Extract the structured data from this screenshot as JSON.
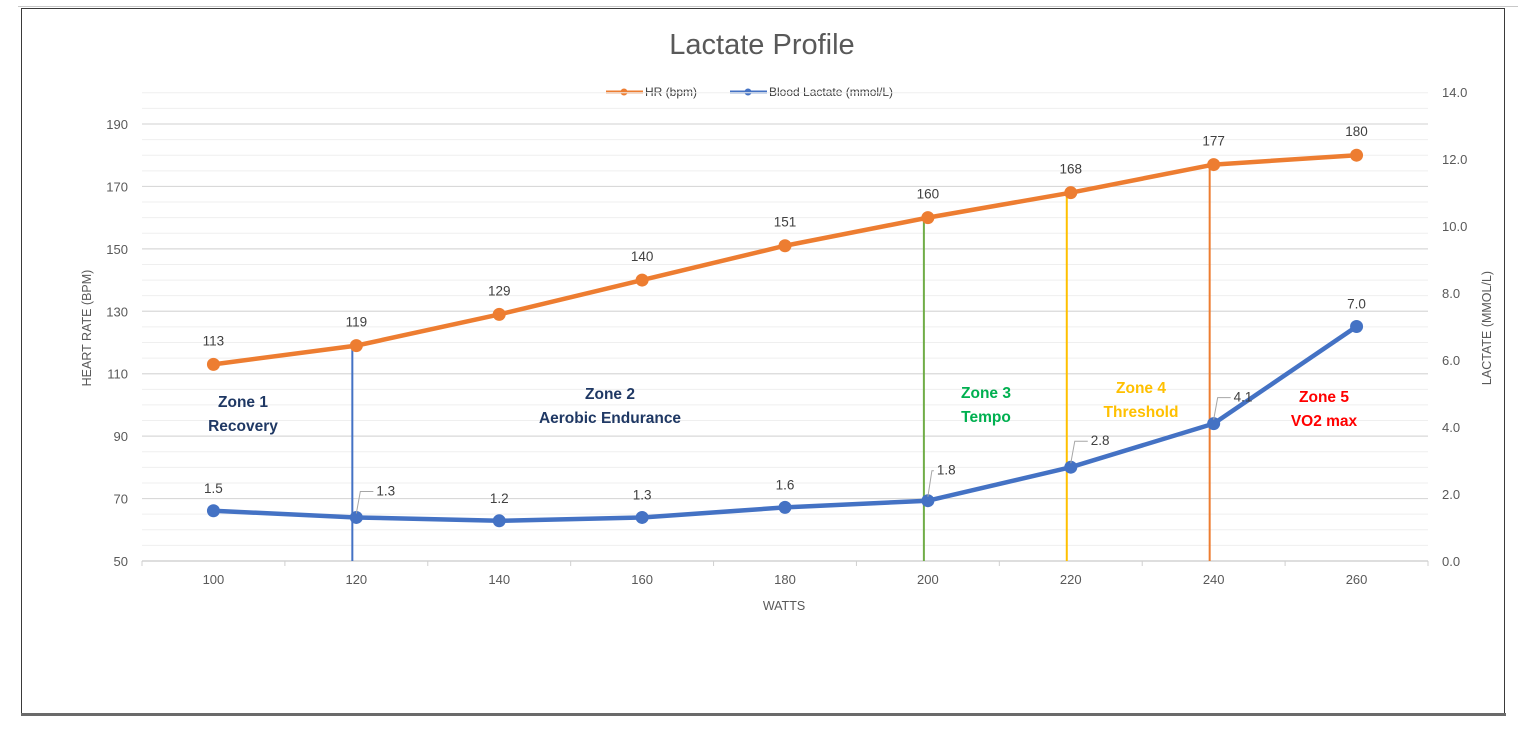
{
  "chart_data": {
    "type": "line",
    "title": "Lactate Profile",
    "xlabel": "WATTS",
    "ylabel": "HEART RATE (BPM)",
    "y2label": "LACTATE (MMOL/L)",
    "categories": [
      100,
      120,
      140,
      160,
      180,
      200,
      220,
      240,
      260
    ],
    "x_tick_labels": [
      "100",
      "120",
      "140",
      "160",
      "180",
      "200",
      "220",
      "240",
      "260"
    ],
    "ylim": [
      50,
      190
    ],
    "y_ticks": [
      "50",
      "70",
      "90",
      "110",
      "130",
      "150",
      "170",
      "190"
    ],
    "y2lim": [
      0,
      14
    ],
    "y2_ticks": [
      "0.0",
      "2.0",
      "4.0",
      "6.0",
      "8.0",
      "10.0",
      "12.0",
      "14.0"
    ],
    "grid": true,
    "legend_position": "top",
    "series": [
      {
        "name": "HR (bpm)",
        "axis": "left",
        "color": "#ED7D31",
        "values": [
          113,
          119,
          129,
          140,
          151,
          160,
          168,
          177,
          180
        ],
        "labels": [
          "113",
          "119",
          "129",
          "140",
          "151",
          "160",
          "168",
          "177",
          "180"
        ]
      },
      {
        "name": "Blood Lactate (mmol/L)",
        "axis": "right",
        "color": "#4472C4",
        "values": [
          1.5,
          1.3,
          1.2,
          1.3,
          1.6,
          1.8,
          2.8,
          4.1,
          7.0
        ],
        "labels": [
          "1.5",
          "1.3",
          "1.2",
          "1.3",
          "1.6",
          "1.8",
          "2.8",
          "4.1",
          "7.0"
        ]
      }
    ],
    "zone_lines": [
      {
        "watts": 120,
        "color": "#4472C4"
      },
      {
        "watts": 200,
        "color": "#70AD47"
      },
      {
        "watts": 220,
        "color": "#FFC000"
      },
      {
        "watts": 240,
        "color": "#ED7D31"
      }
    ],
    "annotations": [
      {
        "line1": "Zone 1",
        "line2": "Recovery",
        "color": "#1F3864"
      },
      {
        "line1": "Zone 2",
        "line2": "Aerobic Endurance",
        "color": "#1F3864"
      },
      {
        "line1": "Zone 3",
        "line2": "Tempo",
        "color": "#00B050"
      },
      {
        "line1": "Zone 4",
        "line2": "Threshold",
        "color": "#FFC000"
      },
      {
        "line1": "Zone 5",
        "line2": "VO2 max",
        "color": "#FF0000"
      }
    ]
  }
}
